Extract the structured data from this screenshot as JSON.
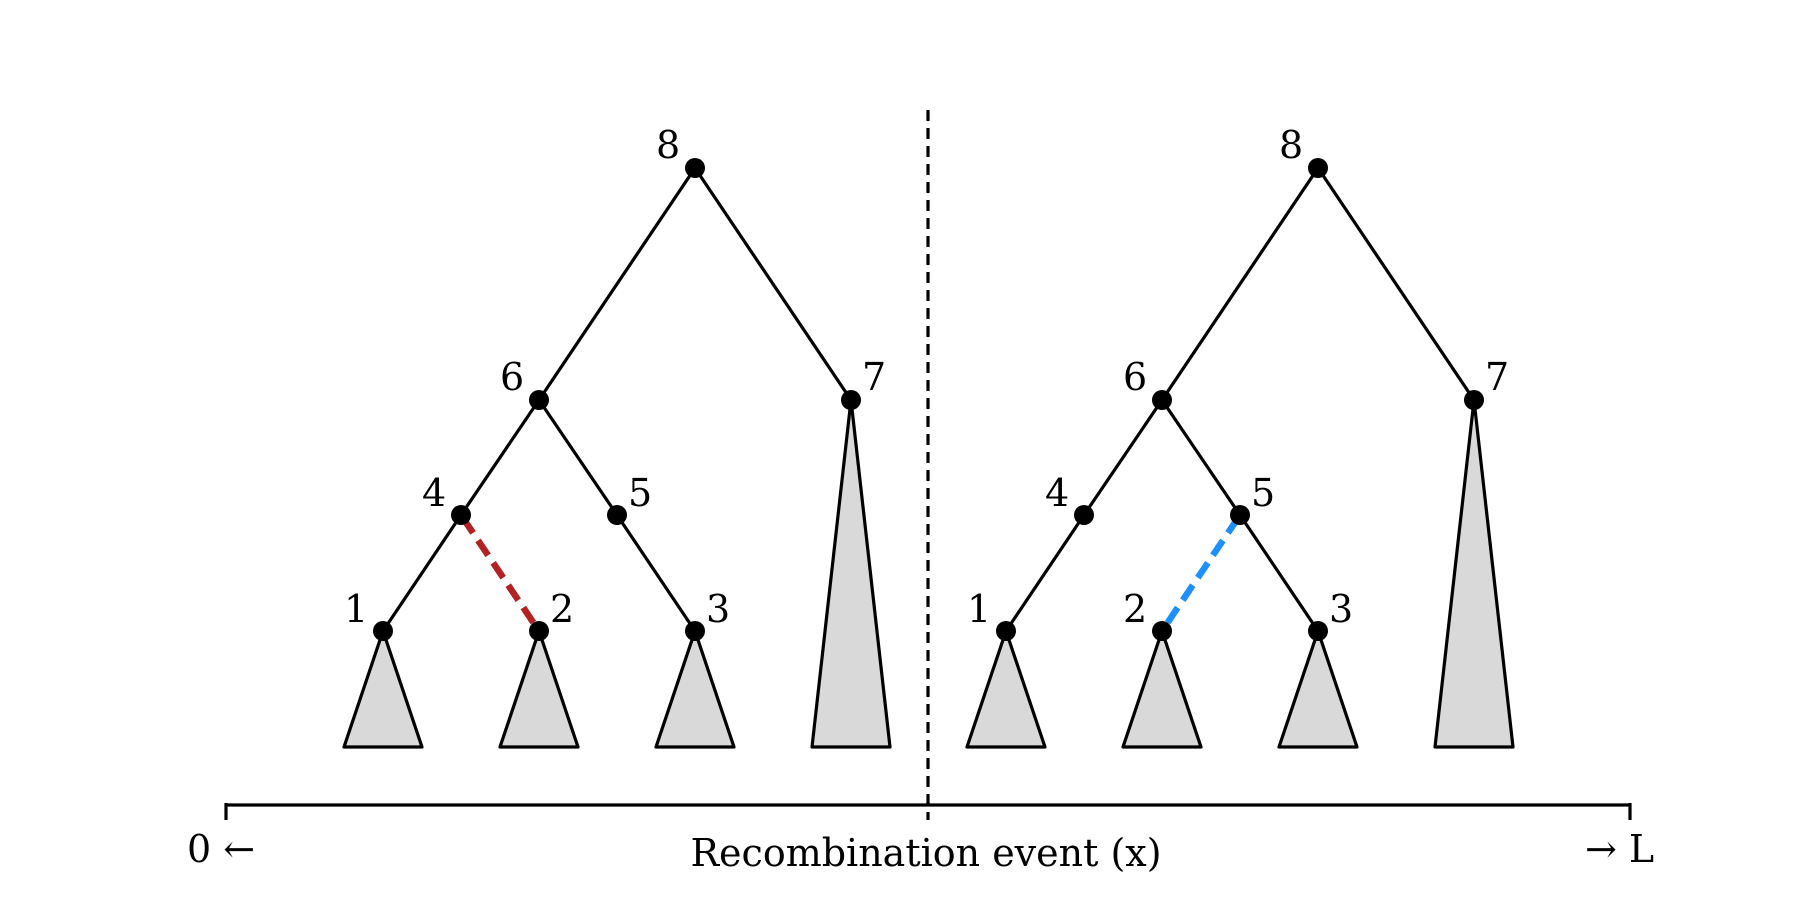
{
  "colors": {
    "edge": "#000000",
    "node": "#000000",
    "subtree_fill": "#d9d9d9",
    "pruned_edge": "#b22222",
    "regrafted_edge": "#1e8fff",
    "divider": "#000000"
  },
  "trees": [
    {
      "name": "left-tree",
      "nodes": [
        "1",
        "2",
        "3",
        "4",
        "5",
        "6",
        "7",
        "8"
      ],
      "highlight_edge": {
        "from": "4",
        "to": "2",
        "color_key": "pruned_edge"
      }
    },
    {
      "name": "right-tree",
      "nodes": [
        "1",
        "2",
        "3",
        "4",
        "5",
        "6",
        "7",
        "8"
      ],
      "highlight_edge": {
        "from": "5",
        "to": "2",
        "color_key": "regrafted_edge"
      }
    }
  ],
  "axis": {
    "left_label": "0 ←",
    "right_label": "→ L",
    "center_label": "Recombination event (x)"
  }
}
